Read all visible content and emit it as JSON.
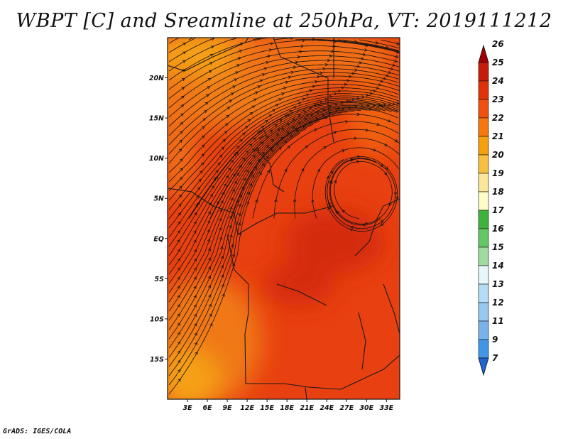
{
  "chart_data": {
    "type": "heatmap",
    "title": "WBPT [C] and Sreamline at 250hPa, VT: 2019111212",
    "variable": "Wet-bulb potential temperature",
    "units": "C",
    "level": "250hPa",
    "valid_time": "2019111212",
    "overlay": "streamlines",
    "x_axis": {
      "range": [
        0,
        35
      ],
      "ticks": [
        3,
        6,
        9,
        12,
        15,
        18,
        21,
        24,
        27,
        30,
        33
      ],
      "tick_labels": [
        "3E",
        "6E",
        "9E",
        "12E",
        "15E",
        "18E",
        "21E",
        "24E",
        "27E",
        "30E",
        "33E"
      ]
    },
    "y_axis": {
      "range": [
        -20,
        25
      ],
      "ticks": [
        20,
        15,
        10,
        5,
        0,
        -5,
        -10,
        -15
      ],
      "tick_labels": [
        "20N",
        "15N",
        "10N",
        "5N",
        "EQ",
        "5S",
        "10S",
        "15S"
      ]
    },
    "colorbar": {
      "labels": [
        "26",
        "25",
        "24",
        "23",
        "22",
        "21",
        "20",
        "19",
        "18",
        "17",
        "16",
        "15",
        "14",
        "13",
        "12",
        "11",
        "9",
        "7"
      ],
      "colors": [
        "#a00000",
        "#c41e0a",
        "#e0320a",
        "#ef5010",
        "#f7780e",
        "#f5a00e",
        "#f8c040",
        "#fbe69a",
        "#fffcc8",
        "#3cb43c",
        "#64c864",
        "#a0dca0",
        "#e6f6fa",
        "#b4dcf5",
        "#96c8f0",
        "#78b4eb",
        "#4196e6",
        "#1e64d2"
      ]
    }
  },
  "credit": "GrADS: IGES/COLA"
}
